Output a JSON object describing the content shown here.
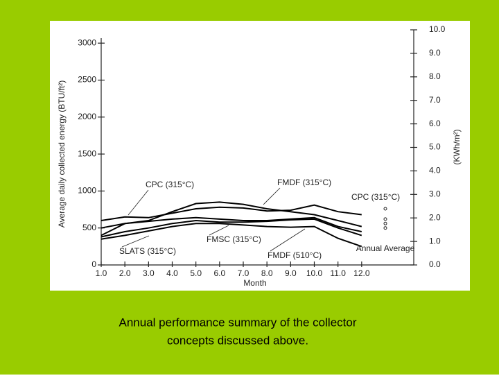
{
  "chart_data": {
    "type": "line",
    "x_label": "Month",
    "y_label": "Average daily collected energy (BTU/ft²)",
    "y2_label": "(KWh/m²)",
    "x": [
      1,
      2,
      3,
      4,
      5,
      6,
      7,
      8,
      9,
      10,
      11,
      12
    ],
    "series": [
      {
        "name": "CPC (315°C)",
        "color": "#000000",
        "values": [
          600,
          650,
          640,
          700,
          760,
          780,
          770,
          730,
          740,
          810,
          720,
          680
        ]
      },
      {
        "name": "FMDF (315°C)",
        "color": "#000000",
        "values": [
          400,
          560,
          600,
          720,
          830,
          850,
          820,
          760,
          720,
          680,
          600,
          520
        ]
      },
      {
        "name": "FMSC (315°C)",
        "color": "#000000",
        "values": [
          500,
          560,
          590,
          620,
          640,
          620,
          600,
          600,
          620,
          640,
          520,
          450
        ]
      },
      {
        "name": "SLATS (315°C)",
        "color": "#000000",
        "values": [
          380,
          450,
          500,
          560,
          600,
          580,
          580,
          590,
          610,
          620,
          500,
          400
        ]
      },
      {
        "name": "FMDF (510°C)",
        "color": "#000000",
        "values": [
          350,
          400,
          460,
          520,
          560,
          560,
          540,
          520,
          510,
          520,
          360,
          250
        ]
      }
    ],
    "annual_average": {
      "label": "Annual Average",
      "values": [
        760,
        620,
        560,
        500
      ]
    },
    "xlim": [
      1,
      14.2
    ],
    "xticks": [
      {
        "value": 1,
        "label": "1.0"
      },
      {
        "value": 2,
        "label": "2.0"
      },
      {
        "value": 3,
        "label": "3.0"
      },
      {
        "value": 4,
        "label": "4.0"
      },
      {
        "value": 5,
        "label": "5.0"
      },
      {
        "value": 6,
        "label": "6.0"
      },
      {
        "value": 7,
        "label": "7.0"
      },
      {
        "value": 8,
        "label": "8.0"
      },
      {
        "value": 9,
        "label": "9.0"
      },
      {
        "value": 10,
        "label": "10.0"
      },
      {
        "value": 11,
        "label": "11.0"
      },
      {
        "value": 12,
        "label": "12.0"
      }
    ],
    "ylim": [
      0,
      3180
    ],
    "yticks": [
      0,
      500,
      1000,
      1500,
      2000,
      2500,
      3000
    ],
    "y2lim": [
      0,
      10
    ],
    "y2ticks": [
      {
        "value": 0,
        "label": "0.0"
      },
      {
        "value": 1,
        "label": "1.0"
      },
      {
        "value": 2,
        "label": "2.0"
      },
      {
        "value": 3,
        "label": "3.0"
      },
      {
        "value": 4,
        "label": "4.0"
      },
      {
        "value": 5,
        "label": "5.0"
      },
      {
        "value": 6,
        "label": "6.0"
      },
      {
        "value": 7,
        "label": "7.0"
      },
      {
        "value": 8,
        "label": "8.0"
      },
      {
        "value": 9,
        "label": "9.0"
      },
      {
        "value": 10,
        "label": "10.0"
      }
    ]
  },
  "caption": {
    "line1": "Annual performance summary of the collector",
    "line2": "concepts discussed above."
  }
}
